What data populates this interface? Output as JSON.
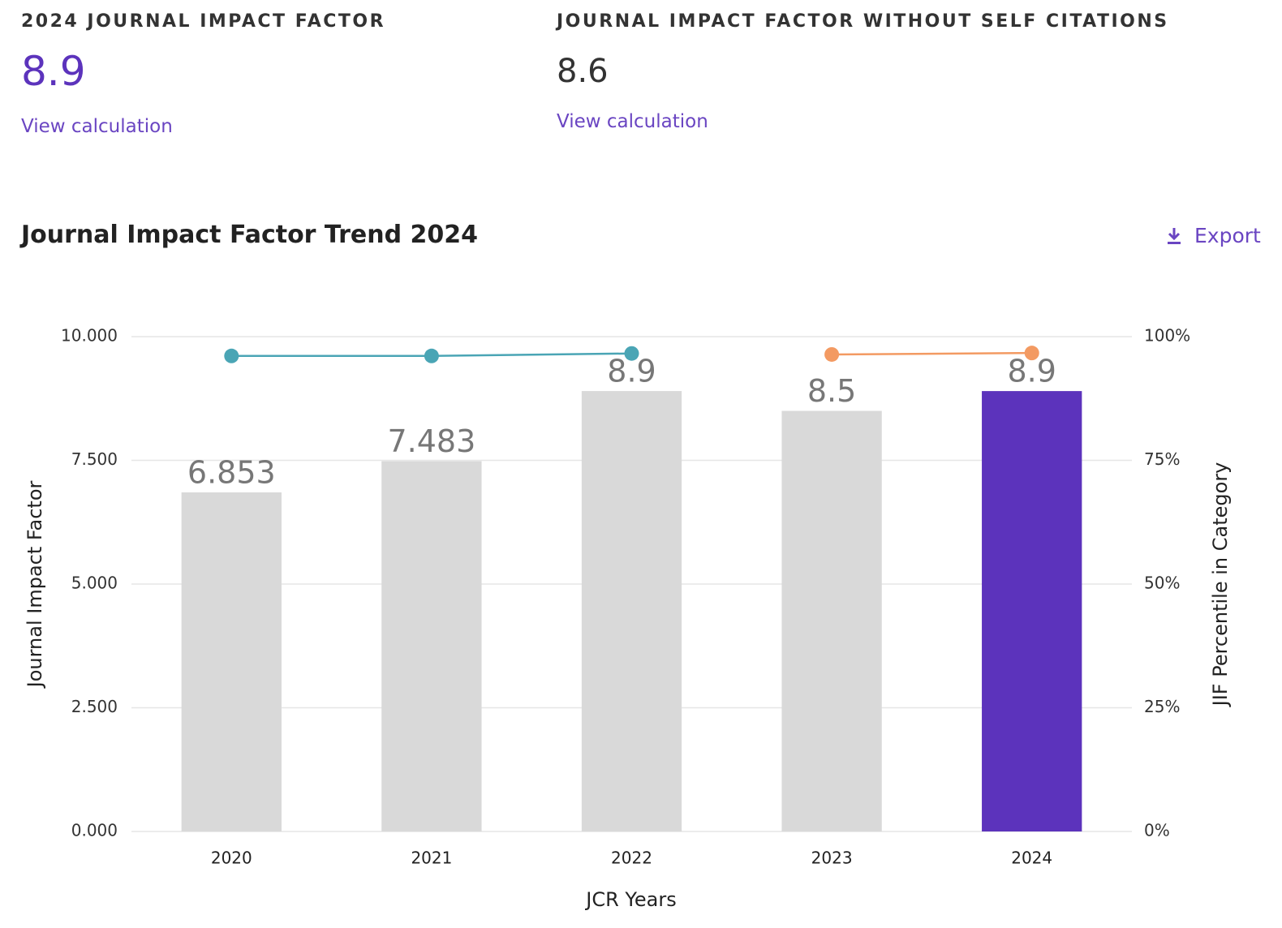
{
  "metrics": [
    {
      "title": "2024 JOURNAL IMPACT FACTOR",
      "value": "8.9",
      "link": "View calculation"
    },
    {
      "title": "JOURNAL IMPACT FACTOR WITHOUT SELF CITATIONS",
      "value": "8.6",
      "link": "View calculation"
    }
  ],
  "section": {
    "title": "Journal Impact Factor Trend 2024",
    "export": "Export"
  },
  "chart_data": {
    "type": "bar",
    "categories": [
      "2020",
      "2021",
      "2022",
      "2023",
      "2024"
    ],
    "values": [
      6.853,
      7.483,
      8.9,
      8.5,
      8.9
    ],
    "colors": [
      "#d9d9d9",
      "#d9d9d9",
      "#d9d9d9",
      "#d9d9d9",
      "#5c33bc"
    ],
    "series": [
      {
        "color": "#4aa5b5",
        "values": [
          96.1,
          96.1,
          96.6,
          null,
          null
        ],
        "axis": "y2"
      },
      {
        "color": "#f39a62",
        "values": [
          null,
          null,
          null,
          96.4,
          96.7
        ],
        "axis": "y2"
      }
    ],
    "ylim": [
      0,
      10
    ],
    "yticks": [
      {
        "value": 0,
        "label": "0.000"
      },
      {
        "value": 2.5,
        "label": "2.500"
      },
      {
        "value": 5,
        "label": "5.000"
      },
      {
        "value": 7.5,
        "label": "7.500"
      },
      {
        "value": 10,
        "label": "10.000"
      }
    ],
    "y2lim": [
      0,
      100
    ],
    "y2ticks": [
      {
        "value": 0,
        "label": "0%"
      },
      {
        "value": 25,
        "label": "25%"
      },
      {
        "value": 50,
        "label": "50%"
      },
      {
        "value": 75,
        "label": "75%"
      },
      {
        "value": 100,
        "label": "100%"
      }
    ],
    "xlabel": "JCR Years",
    "ylabel": "Journal Impact Factor",
    "y2label": "JIF Percentile in Category",
    "grid": true
  }
}
